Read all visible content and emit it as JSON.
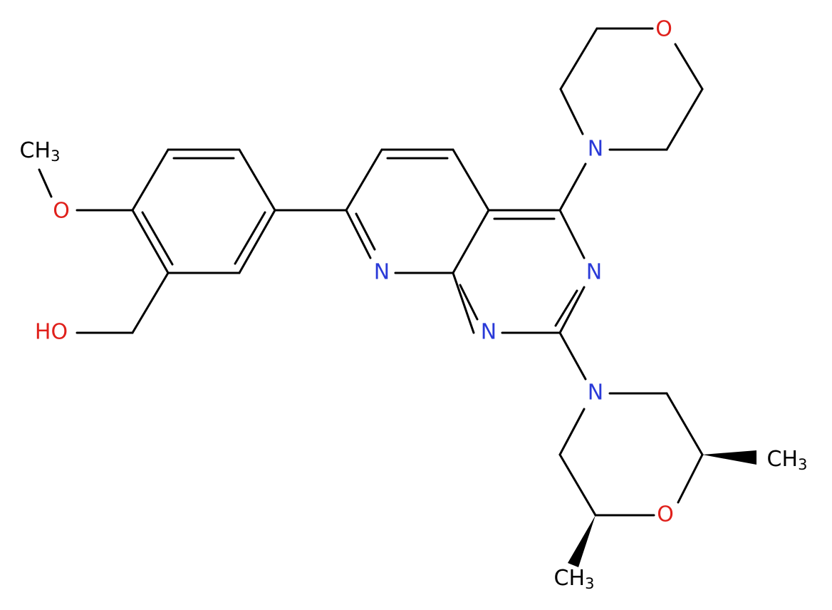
{
  "atoms": [
    {
      "symbol": "O"
    },
    {
      "symbol": "N"
    },
    {
      "symbol": "N"
    },
    {
      "symbol": "N"
    },
    {
      "symbol": "N"
    },
    {
      "symbol": "N"
    },
    {
      "symbol": "O"
    },
    {
      "symbol": "CH",
      "subscript": "3"
    },
    {
      "symbol": "CH",
      "subscript": "3"
    },
    {
      "symbol": "O"
    },
    {
      "symbol": "CH",
      "subscript": "3"
    },
    {
      "symbol": "HO"
    }
  ]
}
